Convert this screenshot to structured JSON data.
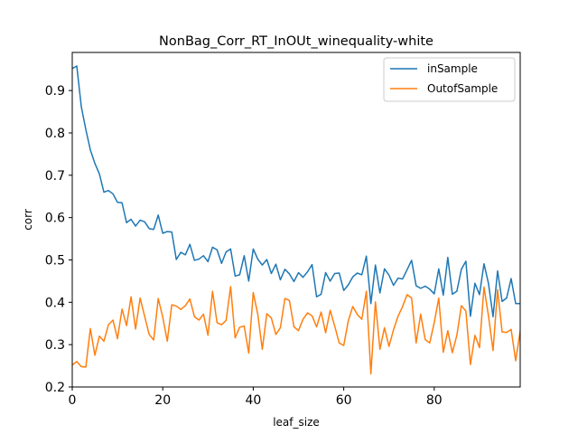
{
  "chart_data": {
    "type": "line",
    "title": "NonBag_Corr_RT_InOUt_winequality-white",
    "xlabel": "leaf_size",
    "ylabel": "corr",
    "xlim": [
      0,
      99
    ],
    "ylim": [
      0.2,
      0.99
    ],
    "xticks": [
      0,
      20,
      40,
      60,
      80
    ],
    "yticks": [
      0.2,
      0.3,
      0.4,
      0.5,
      0.6,
      0.7,
      0.8,
      0.9
    ],
    "grid": false,
    "legend_position": "top-right",
    "series": [
      {
        "name": "inSample",
        "color": "#1f77b4",
        "values": [
          0.952,
          0.958,
          0.862,
          0.808,
          0.76,
          0.728,
          0.703,
          0.66,
          0.664,
          0.656,
          0.636,
          0.635,
          0.588,
          0.596,
          0.58,
          0.594,
          0.59,
          0.574,
          0.572,
          0.606,
          0.563,
          0.567,
          0.566,
          0.501,
          0.518,
          0.512,
          0.537,
          0.499,
          0.502,
          0.51,
          0.496,
          0.53,
          0.524,
          0.492,
          0.519,
          0.526,
          0.462,
          0.465,
          0.51,
          0.45,
          0.526,
          0.502,
          0.488,
          0.501,
          0.468,
          0.49,
          0.453,
          0.478,
          0.467,
          0.449,
          0.47,
          0.459,
          0.472,
          0.489,
          0.413,
          0.419,
          0.47,
          0.45,
          0.468,
          0.469,
          0.428,
          0.441,
          0.46,
          0.469,
          0.465,
          0.509,
          0.397,
          0.488,
          0.422,
          0.479,
          0.464,
          0.44,
          0.457,
          0.455,
          0.477,
          0.499,
          0.439,
          0.433,
          0.438,
          0.431,
          0.42,
          0.479,
          0.417,
          0.506,
          0.419,
          0.426,
          0.478,
          0.497,
          0.367,
          0.445,
          0.418,
          0.491,
          0.444,
          0.366,
          0.474,
          0.402,
          0.41,
          0.456,
          0.397,
          0.397
        ]
      },
      {
        "name": "OutofSample",
        "color": "#ff7f0e",
        "values": [
          0.252,
          0.26,
          0.248,
          0.247,
          0.338,
          0.275,
          0.32,
          0.308,
          0.347,
          0.358,
          0.314,
          0.384,
          0.345,
          0.413,
          0.337,
          0.41,
          0.367,
          0.324,
          0.311,
          0.409,
          0.365,
          0.308,
          0.394,
          0.391,
          0.383,
          0.392,
          0.408,
          0.366,
          0.358,
          0.372,
          0.322,
          0.426,
          0.352,
          0.347,
          0.357,
          0.437,
          0.316,
          0.341,
          0.344,
          0.28,
          0.423,
          0.372,
          0.289,
          0.373,
          0.363,
          0.324,
          0.34,
          0.409,
          0.404,
          0.342,
          0.333,
          0.36,
          0.375,
          0.368,
          0.342,
          0.377,
          0.328,
          0.381,
          0.344,
          0.304,
          0.298,
          0.356,
          0.39,
          0.371,
          0.36,
          0.426,
          0.231,
          0.401,
          0.289,
          0.34,
          0.296,
          0.335,
          0.367,
          0.39,
          0.418,
          0.41,
          0.304,
          0.372,
          0.312,
          0.304,
          0.352,
          0.41,
          0.282,
          0.333,
          0.281,
          0.322,
          0.392,
          0.379,
          0.253,
          0.322,
          0.293,
          0.436,
          0.367,
          0.286,
          0.43,
          0.33,
          0.329,
          0.336,
          0.262,
          0.332
        ]
      }
    ]
  }
}
